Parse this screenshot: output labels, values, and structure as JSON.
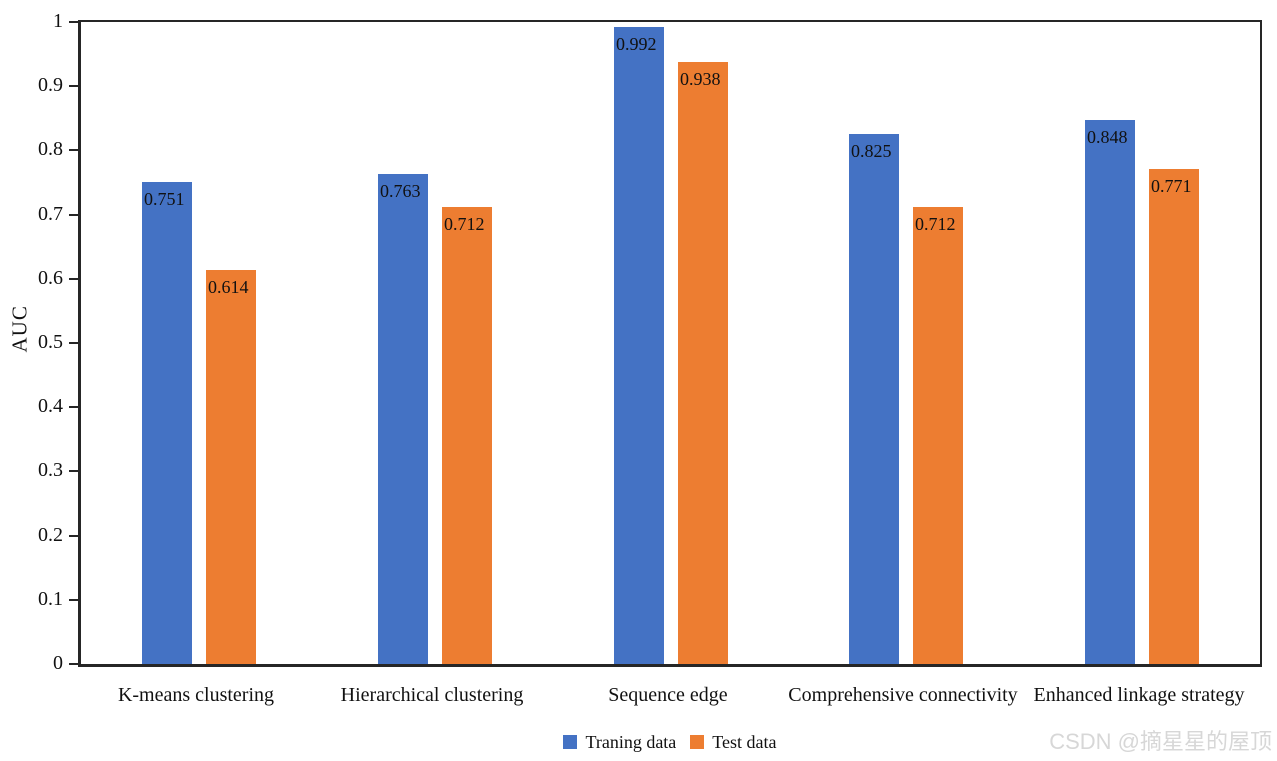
{
  "chart_data": {
    "type": "bar",
    "categories": [
      "K-means clustering",
      "Hierarchical clustering",
      "Sequence edge",
      "Comprehensive connectivity",
      "Enhanced linkage strategy"
    ],
    "series": [
      {
        "name": "Traning data",
        "color": "#4472C4",
        "values": [
          0.751,
          0.763,
          0.992,
          0.825,
          0.848
        ],
        "labels": [
          "0.751",
          "0.763",
          "0.992",
          "0.825",
          "0.848"
        ]
      },
      {
        "name": "Test data",
        "color": "#ED7D31",
        "values": [
          0.614,
          0.712,
          0.938,
          0.712,
          0.771
        ],
        "labels": [
          "0.614",
          "0.712",
          "0.938",
          "0.712",
          "0.771"
        ]
      }
    ],
    "title": "",
    "xlabel": "",
    "ylabel": "AUC",
    "ylim": [
      0,
      1
    ],
    "yticks": [
      0,
      0.1,
      0.2,
      0.3,
      0.4,
      0.5,
      0.6,
      0.7,
      0.8,
      0.9,
      1
    ],
    "ytick_labels": [
      "0",
      "0.1",
      "0.2",
      "0.3",
      "0.4",
      "0.5",
      "0.6",
      "0.7",
      "0.8",
      "0.9",
      "1"
    ],
    "grid": false,
    "legend_position": "bottom"
  },
  "colors": {
    "axis": "#262626",
    "text": "#111111",
    "watermark": "#d7d7d7"
  },
  "watermark": "CSDN @摘星星的屋顶"
}
